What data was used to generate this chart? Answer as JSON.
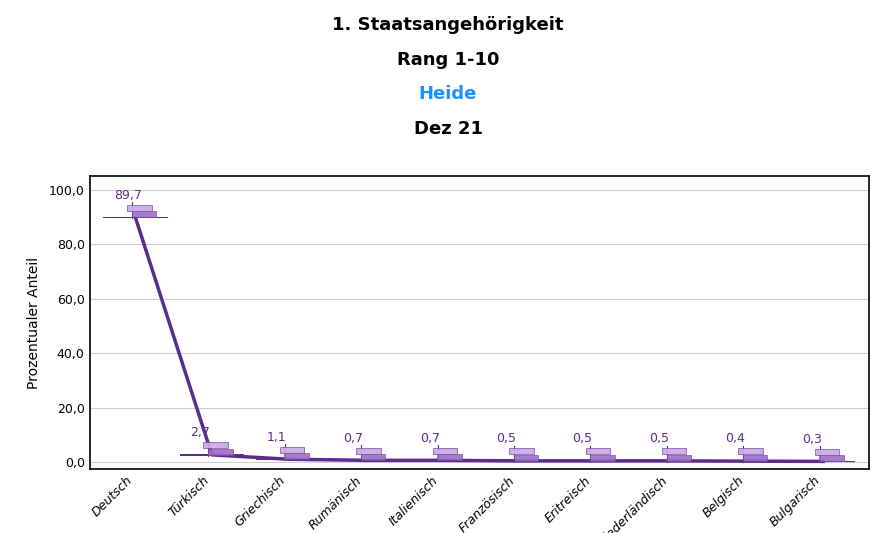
{
  "title_line1": "1. Staatsangehörigkeit",
  "title_line2": "Rang 1-10",
  "title_line3": "Heide",
  "title_line4": "Dez 21",
  "title_line3_color": "#1e90ff",
  "xlabel": "1. Staatsangehörigkeit",
  "ylabel": "Prozentualer Anteil",
  "categories": [
    "Deutsch",
    "Türkisch",
    "Griechisch",
    "Rumänisch",
    "Italienisch",
    "Französisch",
    "Eritreisch",
    "Niederländisch",
    "Belgisch",
    "Bulgarisch"
  ],
  "values": [
    89.7,
    2.7,
    1.1,
    0.7,
    0.7,
    0.5,
    0.5,
    0.5,
    0.4,
    0.3
  ],
  "value_labels": [
    "89,7",
    "2,7",
    "1,1",
    "0,7",
    "0,7",
    "0,5",
    "0,5",
    "0,5",
    "0,4",
    "0,3"
  ],
  "line_color": "#5b2c8d",
  "bar_color": "#5b2c8d",
  "flag_light": "#c8aee8",
  "flag_mid": "#9b6fc7",
  "flag_dark": "#7b3fa0",
  "ylim_max": 105,
  "yticks": [
    0.0,
    20.0,
    40.0,
    60.0,
    80.0,
    100.0
  ],
  "ytick_labels": [
    "0,0",
    "20,0",
    "40,0",
    "60,0",
    "80,0",
    "100,0"
  ],
  "background_color": "#ffffff",
  "grid_color": "#cccccc",
  "border_color": "#000000",
  "title_fontsize": 13,
  "label_fontsize": 10,
  "tick_fontsize": 9,
  "value_fontsize": 9
}
